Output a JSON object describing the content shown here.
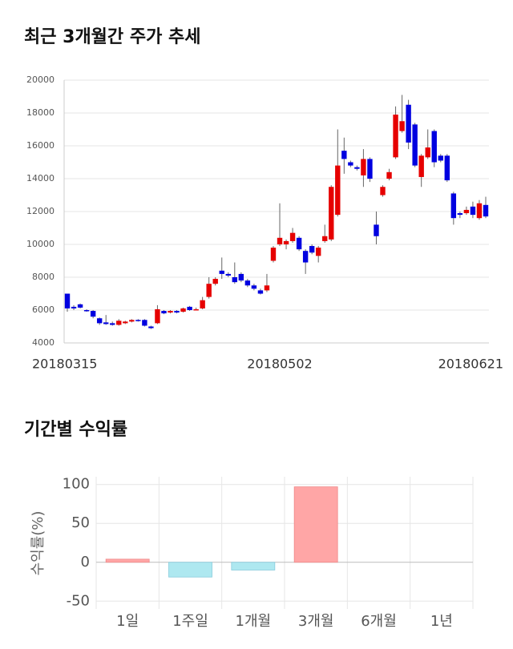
{
  "chart_data": [
    {
      "type": "candlestick",
      "title": "최근 3개월간 주가 추세",
      "categories": [
        "20180315",
        null,
        null,
        null,
        null,
        null,
        null,
        null,
        null,
        null,
        null,
        null,
        null,
        null,
        null,
        null,
        null,
        null,
        null,
        null,
        null,
        null,
        null,
        null,
        null,
        null,
        null,
        null,
        null,
        null,
        null,
        null,
        null,
        "20180502",
        null,
        null,
        null,
        null,
        null,
        null,
        null,
        null,
        null,
        null,
        null,
        null,
        null,
        null,
        null,
        null,
        null,
        null,
        null,
        null,
        null,
        null,
        null,
        null,
        null,
        null,
        null,
        null,
        null,
        null,
        null,
        "20180621"
      ],
      "open": [
        7000,
        6200,
        6350,
        6000,
        5950,
        5500,
        5250,
        5200,
        5100,
        5200,
        5300,
        5400,
        5400,
        5000,
        5200,
        5950,
        5850,
        5950,
        5900,
        6200,
        6050,
        6100,
        6800,
        7600,
        8400,
        8200,
        8000,
        8200,
        7800,
        7500,
        7200,
        7200,
        9000,
        10000,
        10000,
        10200,
        10400,
        9600,
        9900,
        9300,
        10200,
        10300,
        11800,
        15700,
        15000,
        14700,
        14200,
        15200,
        11200,
        13000,
        14000,
        15300,
        16900,
        18500,
        17300,
        14100,
        15300,
        16900,
        15400,
        15400,
        13100,
        11900,
        11900,
        12300,
        11600,
        12400
      ],
      "high": [
        7000,
        6300,
        6400,
        6050,
        6000,
        5550,
        5700,
        5300,
        5450,
        5350,
        5450,
        5450,
        5450,
        5050,
        6300,
        6000,
        6000,
        6000,
        6150,
        6250,
        6150,
        6800,
        8000,
        8000,
        9200,
        8300,
        8900,
        8300,
        7900,
        7600,
        7300,
        8200,
        9900,
        12500,
        10300,
        11000,
        10500,
        9700,
        10000,
        9900,
        11200,
        13600,
        17000,
        16500,
        15100,
        14800,
        15800,
        15300,
        12000,
        13600,
        14600,
        18400,
        19100,
        18800,
        17400,
        15500,
        17000,
        17000,
        15500,
        15500,
        13200,
        12000,
        12300,
        12600,
        12700,
        12900
      ],
      "low": [
        5900,
        6000,
        6100,
        5900,
        5500,
        5100,
        5100,
        5050,
        5050,
        5150,
        5250,
        5300,
        5000,
        4850,
        5150,
        5750,
        5800,
        5800,
        5850,
        5950,
        6000,
        6050,
        6700,
        7500,
        7900,
        8000,
        7600,
        7700,
        7400,
        7200,
        6950,
        7100,
        8900,
        9900,
        9700,
        10100,
        9600,
        8200,
        9400,
        8900,
        10100,
        10200,
        11700,
        14300,
        14700,
        14500,
        13500,
        13800,
        10000,
        12900,
        13900,
        15200,
        16800,
        15800,
        14700,
        13500,
        15200,
        14700,
        15000,
        13800,
        11200,
        11600,
        11800,
        11600,
        11500,
        11600
      ],
      "close": [
        6100,
        6100,
        6150,
        5950,
        5600,
        5200,
        5150,
        5100,
        5350,
        5300,
        5400,
        5350,
        5050,
        4900,
        6050,
        5800,
        5950,
        5850,
        6100,
        6000,
        6050,
        6600,
        7600,
        7900,
        8200,
        8100,
        7700,
        7800,
        7500,
        7300,
        7000,
        7500,
        9800,
        10400,
        10200,
        10700,
        9700,
        8900,
        9500,
        9800,
        10500,
        13500,
        14800,
        15200,
        14800,
        14600,
        15200,
        14000,
        10500,
        13500,
        14400,
        17900,
        17500,
        16200,
        14800,
        15400,
        15900,
        15000,
        15100,
        13900,
        11600,
        11800,
        12100,
        11800,
        12500,
        11700
      ],
      "up_color": "#e60000",
      "down_color": "#0000e0",
      "ylim": [
        4000,
        20000
      ],
      "yticks": [
        4000,
        6000,
        8000,
        10000,
        12000,
        14000,
        16000,
        18000,
        20000
      ],
      "grid": true
    },
    {
      "type": "bar",
      "title": "기간별 수익률",
      "y_label": "수익률(%)",
      "categories": [
        "1일",
        "1주일",
        "1개월",
        "3개월",
        "6개월",
        "1년"
      ],
      "values": [
        4,
        -19,
        -10,
        97,
        null,
        null
      ],
      "positive_color": "#ffa6a6",
      "negative_color": "#aee8f0",
      "ylim": [
        -60,
        110
      ],
      "yticks": [
        -50,
        0,
        50,
        100
      ],
      "grid": true
    }
  ]
}
